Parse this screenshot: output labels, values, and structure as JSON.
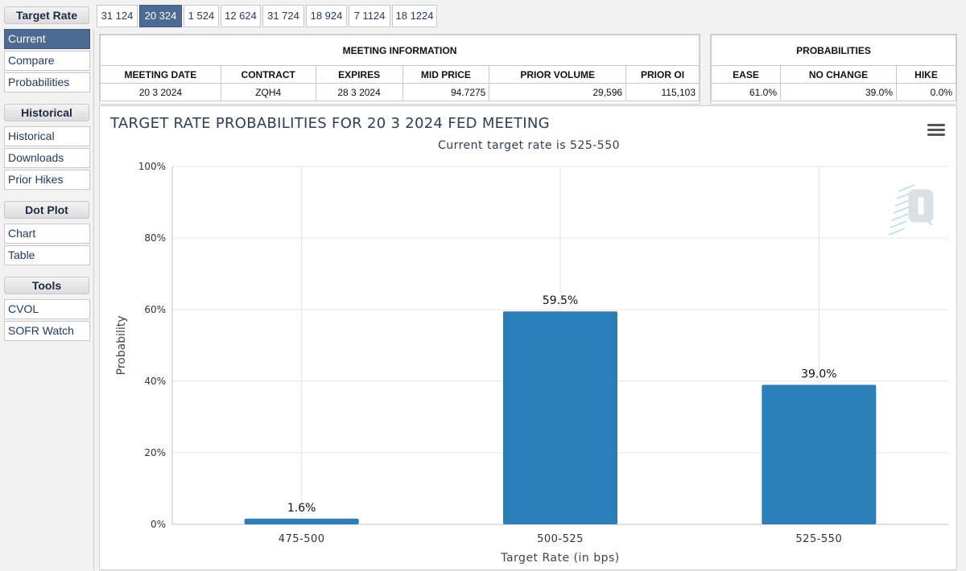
{
  "sidebar": {
    "sections": [
      {
        "header": "Target Rate",
        "items": [
          "Current",
          "Compare",
          "Probabilities"
        ]
      },
      {
        "header": "Historical",
        "items": [
          "Historical",
          "Downloads",
          "Prior Hikes"
        ]
      },
      {
        "header": "Dot Plot",
        "items": [
          "Chart",
          "Table"
        ]
      },
      {
        "header": "Tools",
        "items": [
          "CVOL",
          "SOFR Watch"
        ]
      }
    ],
    "active_item": "Current"
  },
  "tabs": [
    "31 124",
    "20 324",
    "1 524",
    "12 624",
    "31 724",
    "18 924",
    "7 1124",
    "18 1224"
  ],
  "active_tab": "20 324",
  "meeting_info": {
    "caption": "MEETING INFORMATION",
    "headers": [
      "MEETING DATE",
      "CONTRACT",
      "EXPIRES",
      "MID PRICE",
      "PRIOR VOLUME",
      "PRIOR OI"
    ],
    "row": [
      "20 3 2024",
      "ZQH4",
      "28 3 2024",
      "94.7275",
      "29,596",
      "115,103"
    ]
  },
  "probabilities": {
    "caption": "PROBABILITIES",
    "headers": [
      "EASE",
      "NO CHANGE",
      "HIKE"
    ],
    "row": [
      "61.0%",
      "39.0%",
      "0.0%"
    ]
  },
  "chart": {
    "title": "TARGET RATE PROBABILITIES FOR 20 3 2024 FED MEETING",
    "subtitle": "Current target rate is 525-550",
    "menu_icon": "hamburger-menu-icon",
    "watermark_icon": "cme-q-logo-icon",
    "bar_color": "#2a7fb8"
  },
  "chart_data": {
    "type": "bar",
    "categories": [
      "475-500",
      "500-525",
      "525-550"
    ],
    "values": [
      1.6,
      59.5,
      39.0
    ],
    "data_labels": [
      "1.6%",
      "59.5%",
      "39.0%"
    ],
    "xlabel": "Target Rate (in bps)",
    "ylabel": "Probability",
    "ylim": [
      0,
      100
    ],
    "yticks": [
      0,
      20,
      40,
      60,
      80,
      100
    ],
    "ytick_labels": [
      "0%",
      "20%",
      "40%",
      "60%",
      "80%",
      "100%"
    ],
    "grid": true
  }
}
